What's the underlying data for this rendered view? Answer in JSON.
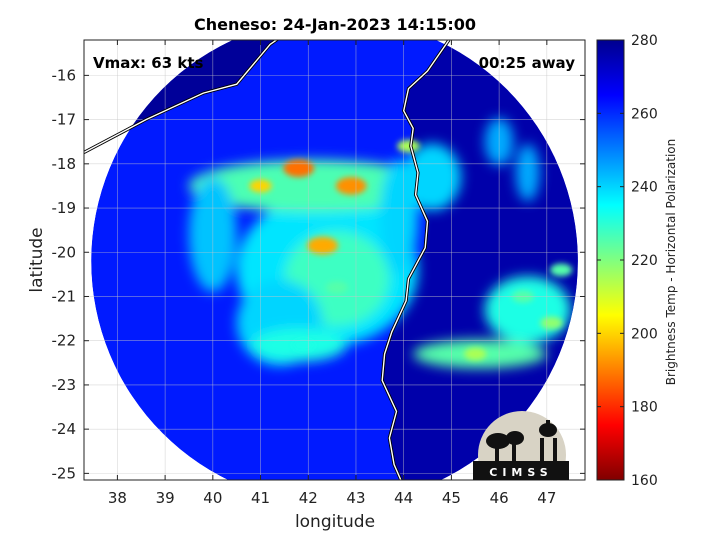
{
  "chart_data": {
    "type": "heatmap",
    "title": "Cheneso: 24-Jan-2023 14:15:00",
    "xlabel": "longitude",
    "ylabel": "latitude",
    "xlim": [
      37.3,
      47.8
    ],
    "ylim": [
      -25.15,
      -15.2
    ],
    "xticks": [
      38,
      39,
      40,
      41,
      42,
      43,
      44,
      45,
      46,
      47
    ],
    "yticks": [
      -16,
      -17,
      -18,
      -19,
      -20,
      -21,
      -22,
      -23,
      -24,
      -25
    ],
    "grid": true,
    "annotations": {
      "vmax": "Vmax: 63 kts",
      "time_away": "00:25 away",
      "logo_text": "CIMSS"
    },
    "colorbar": {
      "label": "Brightness Temp - Horizontal Polarization",
      "min": 160,
      "max": 280,
      "ticks": [
        160,
        180,
        200,
        220,
        240,
        260,
        280
      ],
      "colormap": "jet"
    },
    "swath": {
      "center_lon": 42.55,
      "center_lat": -20.2,
      "radius_deg": 5.1
    },
    "storm_center": {
      "lon": 42.35,
      "lat": -20.2
    },
    "features": [
      {
        "name": "convective band north",
        "lon": 41.8,
        "lat": -18.1,
        "value": 188
      },
      {
        "name": "band west segment",
        "lon": 41.0,
        "lat": -18.5,
        "value": 200
      },
      {
        "name": "band east segment",
        "lon": 42.9,
        "lat": -18.5,
        "value": 192
      },
      {
        "name": "eye wall core",
        "lon": 42.3,
        "lat": -19.85,
        "value": 195
      },
      {
        "name": "inner spiral",
        "lon": 42.6,
        "lat": -20.8,
        "value": 225
      },
      {
        "name": "outer band south",
        "lon": 41.9,
        "lat": -22.1,
        "value": 232
      },
      {
        "name": "coastal convection",
        "lon": 44.1,
        "lat": -17.6,
        "value": 215
      },
      {
        "name": "band near coast",
        "lon": 45.5,
        "lat": -22.3,
        "value": 215
      },
      {
        "name": "cell east 1",
        "lon": 47.1,
        "lat": -21.6,
        "value": 218
      },
      {
        "name": "cell east 2",
        "lon": 46.5,
        "lat": -21.0,
        "value": 225
      },
      {
        "name": "cell east 3",
        "lon": 47.3,
        "lat": -20.4,
        "value": 225
      }
    ],
    "background": {
      "ocean": 262,
      "land": 275
    }
  },
  "colors": {
    "jet_dark_red": "#800000",
    "jet_red": "#ff0000",
    "jet_yellow": "#ffff00",
    "jet_cyan": "#00ffff",
    "jet_blue": "#0000ff",
    "jet_navy": "#00008f",
    "coast_outer": "#000000",
    "coast_inner": "#ffffff"
  }
}
